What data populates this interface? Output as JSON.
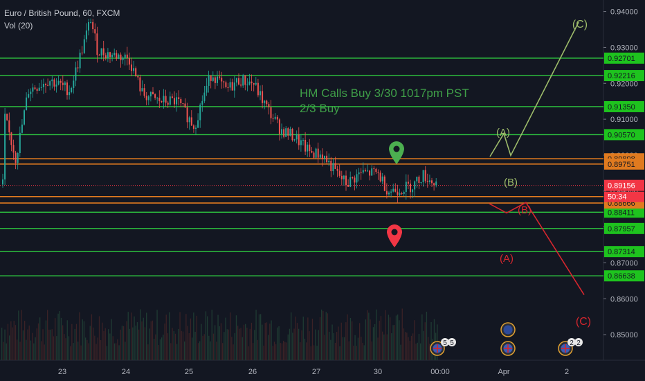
{
  "header": {
    "symbol": "Euro / British Pound, 60, FXCM",
    "indicator": "Vol (20)"
  },
  "annotation": {
    "line1": "HM Calls Buy 3/30 1017pm PST",
    "line2": "2/3 Buy"
  },
  "colors": {
    "background": "#131722",
    "green_line": "#2ecc40",
    "orange_line": "#e07a1f",
    "green_path": "#9dbb6a",
    "red_path": "#d6262e",
    "price_marker": "#f23645",
    "candle_up": "#26a69a",
    "candle_down": "#ef5350"
  },
  "chart_data": {
    "type": "candlestick",
    "symbol": "EURGBP",
    "timeframe": "60",
    "ylim": [
      0.8452,
      0.9432
    ],
    "price_ticks": [
      "0.94000",
      "0.93000",
      "0.92000",
      "0.91000",
      "0.90000",
      "0.89000",
      "0.88000",
      "0.87000",
      "0.86000",
      "0.85000"
    ],
    "date_ticks": [
      "23",
      "24",
      "25",
      "26",
      "27",
      "30",
      "00:00",
      "Apr",
      "2"
    ],
    "current_price": {
      "value": 0.89156,
      "label": "0.89156",
      "countdown": "50:34"
    },
    "green_levels": [
      {
        "value": 0.92701,
        "label": "0.92701"
      },
      {
        "value": 0.92216,
        "label": "0.92216"
      },
      {
        "value": 0.9135,
        "label": "0.91350"
      },
      {
        "value": 0.9057,
        "label": "0.90570"
      },
      {
        "value": 0.88411,
        "label": "0.88411"
      },
      {
        "value": 0.87957,
        "label": "0.87957"
      },
      {
        "value": 0.87314,
        "label": "0.87314"
      },
      {
        "value": 0.86638,
        "label": "0.86638"
      }
    ],
    "orange_levels": [
      {
        "value": 0.89898,
        "label": "0.89898"
      },
      {
        "value": 0.89751,
        "label": "0.89751"
      },
      {
        "value": 0.88666,
        "label": "0.88666"
      },
      {
        "value": 0.88845,
        "label": ""
      }
    ],
    "bullish_wave": {
      "labels": [
        "(A)",
        "(B)",
        "(C)"
      ]
    },
    "bearish_wave": {
      "labels": [
        "(A)",
        "(B)",
        "(C)"
      ]
    },
    "events": [
      {
        "count": "5"
      },
      {
        "count": "5"
      },
      {
        "count": "2"
      },
      {
        "count": "2"
      }
    ]
  }
}
